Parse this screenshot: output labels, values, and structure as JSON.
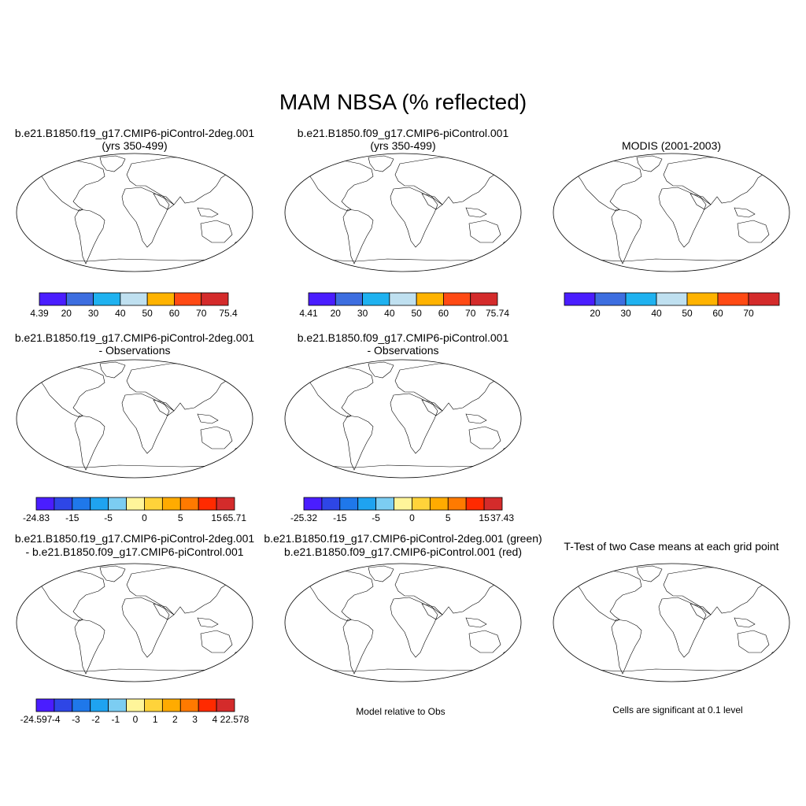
{
  "chart_data": {
    "type": "heatmap",
    "title": "MAM NBSA (% reflected)",
    "panels": [
      {
        "id": "case1",
        "title_line1": "b.e21.B1850.f19_g17.CMIP6-piControl-2deg.001",
        "title_line2": "(yrs 350-499)",
        "colorbar": {
          "colors": [
            "#4a1dff",
            "#3d6ee0",
            "#1fb2f0",
            "#bfe0f0",
            "#ffb300",
            "#ff4a14",
            "#d42b2b"
          ],
          "tick_labels": [
            "4.39",
            "20",
            "30",
            "40",
            "50",
            "60",
            "70",
            "75.4"
          ]
        }
      },
      {
        "id": "case2",
        "title_line1": "b.e21.B1850.f09_g17.CMIP6-piControl.001",
        "title_line2": "(yrs 350-499)",
        "colorbar": {
          "colors": [
            "#4a1dff",
            "#3d6ee0",
            "#1fb2f0",
            "#bfe0f0",
            "#ffb300",
            "#ff4a14",
            "#d42b2b"
          ],
          "tick_labels": [
            "4.41",
            "20",
            "30",
            "40",
            "50",
            "60",
            "70",
            "75.74"
          ]
        }
      },
      {
        "id": "obs",
        "title_line1": "MODIS (2001-2003)",
        "title_line2": "",
        "colorbar": {
          "colors": [
            "#4a1dff",
            "#3d6ee0",
            "#1fb2f0",
            "#bfe0f0",
            "#ffb300",
            "#ff4a14",
            "#d42b2b"
          ],
          "tick_labels": [
            "",
            "20",
            "30",
            "40",
            "50",
            "60",
            "70",
            ""
          ]
        }
      },
      {
        "id": "diff1",
        "title_line1": "b.e21.B1850.f19_g17.CMIP6-piControl-2deg.001",
        "title_line2": "- Observations",
        "colorbar": {
          "colors": [
            "#4a1dff",
            "#2e46e6",
            "#1f78ea",
            "#1fa3f0",
            "#7ccdf2",
            "#fff59a",
            "#ffd33a",
            "#ffab00",
            "#ff7a00",
            "#ff2a00",
            "#d42b2b"
          ],
          "tick_labels": [
            "-24.83",
            "",
            "-15",
            "",
            "-5",
            "",
            "0",
            "",
            "5",
            "",
            "15",
            "65.71"
          ]
        }
      },
      {
        "id": "diff2",
        "title_line1": "b.e21.B1850.f09_g17.CMIP6-piControl.001",
        "title_line2": "- Observations",
        "colorbar": {
          "colors": [
            "#4a1dff",
            "#2e46e6",
            "#1f78ea",
            "#1fa3f0",
            "#7ccdf2",
            "#fff59a",
            "#ffd33a",
            "#ffab00",
            "#ff7a00",
            "#ff2a00",
            "#d42b2b"
          ],
          "tick_labels": [
            "-25.32",
            "",
            "-15",
            "",
            "-5",
            "",
            "0",
            "",
            "5",
            "",
            "15",
            "37.43"
          ]
        }
      },
      {
        "id": "case_diff",
        "title_line1": "b.e21.B1850.f19_g17.CMIP6-piControl-2deg.001",
        "title_line2": "- b.e21.B1850.f09_g17.CMIP6-piControl.001",
        "colorbar": {
          "colors": [
            "#4a1dff",
            "#2e46e6",
            "#1f78ea",
            "#1fa3f0",
            "#7ccdf2",
            "#fff59a",
            "#ffd33a",
            "#ffab00",
            "#ff7a00",
            "#ff2a00",
            "#d42b2b"
          ],
          "tick_labels": [
            "-24.597",
            "-4",
            "-3",
            "-2",
            "-1",
            "0",
            "1",
            "2",
            "3",
            "4",
            "22.578"
          ]
        }
      },
      {
        "id": "closer",
        "title_line1": "b.e21.B1850.f19_g17.CMIP6-piControl-2deg.001 (green)",
        "title_line2": "b.e21.B1850.f09_g17.CMIP6-piControl.001 (red)",
        "caption": "Model relative to Obs"
      },
      {
        "id": "ttest",
        "title_line1": "T-Test of two Case means at each grid point",
        "title_line2": "",
        "caption": "Cells are significant at 0.1 level"
      }
    ]
  },
  "colors": {
    "background": "#ffffff",
    "ocean": "#ffffff",
    "coast": "#000000",
    "model_a": "#22dd22",
    "model_b": "#dd1111",
    "significant": "#ee0000"
  }
}
